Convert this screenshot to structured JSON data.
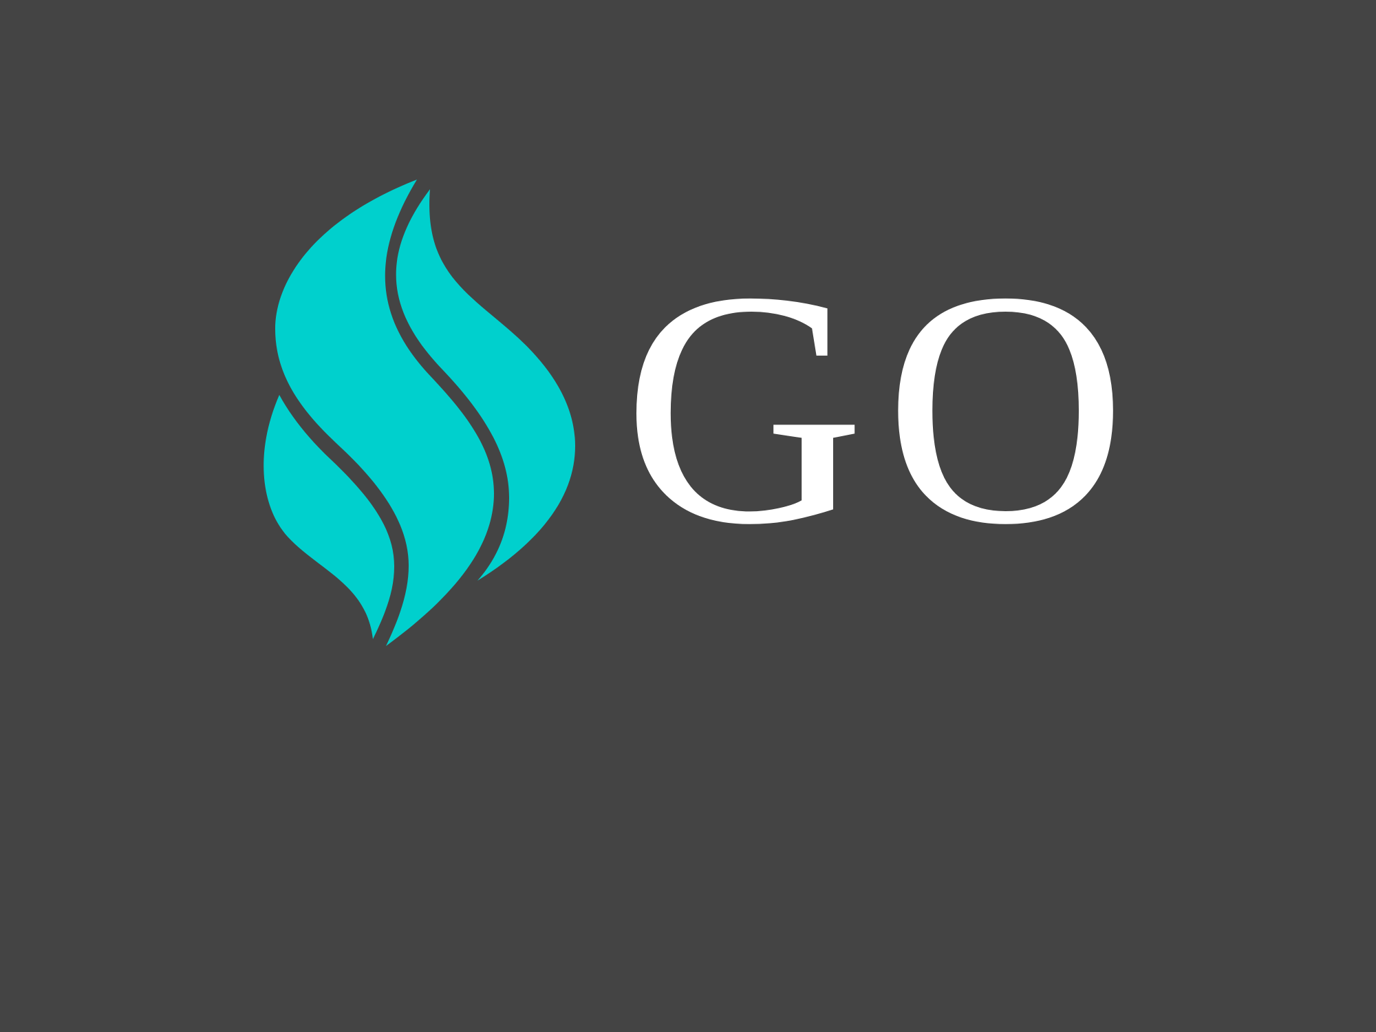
{
  "background_color": "#444444",
  "logo": {
    "icon": "flame-icon",
    "icon_color": "#00D0CD",
    "wordmark": "GO",
    "wordmark_color": "#FFFFFF"
  }
}
